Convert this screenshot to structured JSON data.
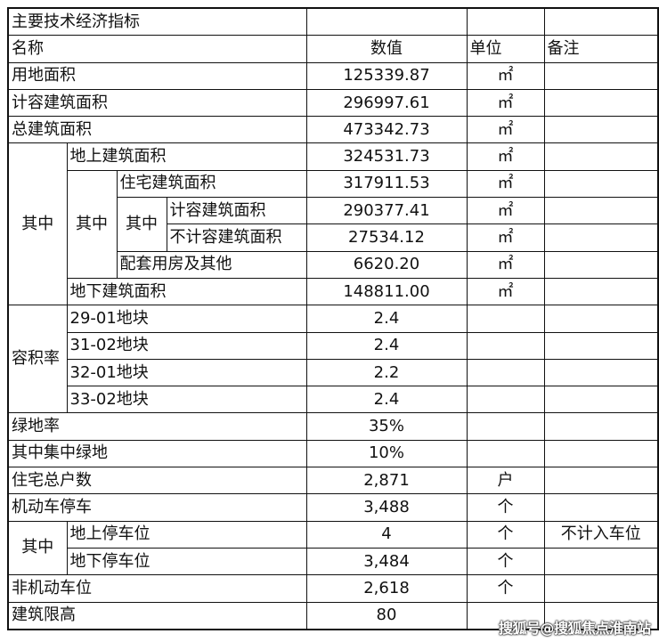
{
  "table": {
    "title": "主要技术经济指标",
    "header": {
      "name": "名称",
      "value": "数值",
      "unit": "单位",
      "remark": "备注"
    },
    "of_which": "其中",
    "rows": {
      "land_area": {
        "name": "用地面积",
        "value": "125339.87",
        "unit": "㎡"
      },
      "far_area": {
        "name": "计容建筑面积",
        "value": "296997.61",
        "unit": "㎡"
      },
      "total_area": {
        "name": "总建筑面积",
        "value": "473342.73",
        "unit": "㎡"
      },
      "above_ground": {
        "name": "地上建筑面积",
        "value": "324531.73",
        "unit": "㎡"
      },
      "residential": {
        "name": "住宅建筑面积",
        "value": "317911.53",
        "unit": "㎡"
      },
      "res_far": {
        "name": "计容建筑面积",
        "value": "290377.41",
        "unit": "㎡"
      },
      "res_non_far": {
        "name": "不计容建筑面积",
        "value": "27534.12",
        "unit": "㎡"
      },
      "supporting": {
        "name": "配套用房及其他",
        "value": "6620.20",
        "unit": "㎡"
      },
      "underground": {
        "name": "地下建筑面积",
        "value": "148811.00",
        "unit": "㎡"
      },
      "far_label": "容积率",
      "plot_29_01": {
        "name": "29-01地块",
        "value": "2.4"
      },
      "plot_31_02": {
        "name": "31-02地块",
        "value": "2.4"
      },
      "plot_32_01": {
        "name": "32-01地块",
        "value": "2.2"
      },
      "plot_33_02": {
        "name": "33-02地块",
        "value": "2.4"
      },
      "green_ratio": {
        "name": "绿地率",
        "value": "35%"
      },
      "central_green": {
        "name": "其中集中绿地",
        "value": "10%"
      },
      "households": {
        "name": "住宅总户数",
        "value": "2,871",
        "unit": "户"
      },
      "parking": {
        "name": "机动车停车",
        "value": "3,488",
        "unit": "个"
      },
      "parking_above": {
        "name": "地上停车位",
        "value": "4",
        "unit": "个",
        "remark": "不计入车位"
      },
      "parking_under": {
        "name": "地下停车位",
        "value": "3,484",
        "unit": "个"
      },
      "bike_parking": {
        "name": "非机动车位",
        "value": "2,618",
        "unit": "个"
      },
      "height_limit": {
        "name": "建筑限高",
        "value": "80"
      }
    }
  },
  "watermark": "搜狐号@搜狐焦点淮南站"
}
